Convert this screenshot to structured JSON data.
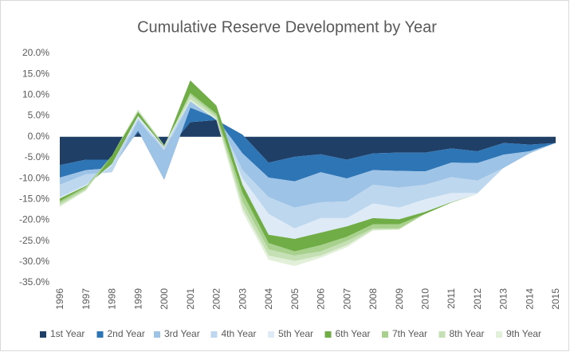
{
  "chart_data": {
    "type": "stacked_area",
    "title": "Cumulative Reserve Development by Year",
    "categories": [
      "1996",
      "1997",
      "1998",
      "1999",
      "2000",
      "2001",
      "2002",
      "2003",
      "2004",
      "2005",
      "2006",
      "2007",
      "2008",
      "2009",
      "2010",
      "2011",
      "2012",
      "2013",
      "2014",
      "2015"
    ],
    "ylim": [
      -35,
      20
    ],
    "yticks": [
      {
        "value": 20,
        "label": "20.0%"
      },
      {
        "value": 15,
        "label": "15.0%"
      },
      {
        "value": 10,
        "label": "10.0%"
      },
      {
        "value": 5,
        "label": "5.0%"
      },
      {
        "value": 0,
        "label": "0.0%"
      },
      {
        "value": -5,
        "label": "-5.0%"
      },
      {
        "value": -10,
        "label": "-10.0%"
      },
      {
        "value": -15,
        "label": "-15.0%"
      },
      {
        "value": -20,
        "label": "-20.0%"
      },
      {
        "value": -25,
        "label": "-25.0%"
      },
      {
        "value": -30,
        "label": "-30.0%"
      },
      {
        "value": -35,
        "label": "-35.0%"
      }
    ],
    "grid": false,
    "legend": "bottom",
    "series": [
      {
        "name": "1st Year",
        "color": "#1f3f66",
        "values": [
          -6.8,
          -5.5,
          -5.5,
          1,
          -4,
          3.5,
          4,
          0.5,
          -6.2,
          -4.8,
          -4.2,
          -5.5,
          -4,
          -3.8,
          -3.8,
          -2.8,
          -3.5,
          -1.5,
          -1.9,
          -1.5
        ]
      },
      {
        "name": "2nd Year",
        "color": "#2e75b6",
        "values": [
          -3,
          -2.5,
          -2,
          0.5,
          -6.3,
          3.5,
          0.5,
          -4.5,
          -3.6,
          -5.9,
          -4.3,
          -4.5,
          -4,
          -4.4,
          -4.5,
          -3.4,
          -2.8,
          -2.8,
          -1.6,
          0
        ]
      },
      {
        "name": "3rd Year",
        "color": "#9dc3e6",
        "values": [
          -1.7,
          -1,
          -1,
          2.5,
          6.8,
          1.5,
          0.5,
          -4,
          -4.7,
          -6.3,
          -7.2,
          -5.5,
          -3.5,
          -4,
          -3.2,
          -3.5,
          -4.2,
          -3.2,
          -0.5,
          0
        ]
      },
      {
        "name": "4th Year",
        "color": "#bdd7ee",
        "values": [
          -3,
          -2.5,
          1.5,
          0.5,
          0.5,
          1.5,
          0.5,
          -2,
          -4,
          -5,
          -3.8,
          -4,
          -4.5,
          -4.8,
          -3.5,
          -3.8,
          -3,
          0,
          0,
          0
        ]
      },
      {
        "name": "5th Year",
        "color": "#deebf7",
        "values": [
          -0.3,
          -0.3,
          0.5,
          0.5,
          0.5,
          3.5,
          2,
          -1.5,
          -5,
          -2.5,
          -3.5,
          -2,
          -3.5,
          -2.8,
          -3,
          -2.2,
          -0.2,
          0,
          0,
          0
        ]
      },
      {
        "name": "6th Year",
        "color": "#70ad47",
        "values": [
          -0.7,
          -0.2,
          2,
          1,
          0,
          -3,
          -2,
          -2,
          -2,
          -3,
          -3,
          -2.5,
          -1.5,
          -1.2,
          -0.5,
          -0.1,
          0,
          0,
          0,
          0
        ]
      },
      {
        "name": "7th Year",
        "color": "#a9d18e",
        "values": [
          -0.5,
          -0.5,
          0,
          0.5,
          0.5,
          -0.5,
          -0.5,
          -2,
          -1.5,
          -1,
          -1.5,
          -1,
          -1,
          -1,
          0,
          0,
          0,
          0,
          0,
          0
        ]
      },
      {
        "name": "8th Year",
        "color": "#c5e0b4",
        "values": [
          -0.5,
          -0.3,
          0,
          -0.2,
          0,
          -1,
          -0.5,
          -1.5,
          -1.5,
          -1.3,
          -1,
          -1,
          -0.3,
          -0.2,
          0,
          0,
          0,
          0,
          0,
          0
        ]
      },
      {
        "name": "9th Year",
        "color": "#e2f0d9",
        "values": [
          -0.3,
          -0.2,
          0,
          -0.3,
          0,
          -0.5,
          -0.5,
          -1,
          -1,
          -1.2,
          -0.5,
          -0.5,
          -0.2,
          -0.1,
          0,
          0,
          0,
          0,
          0,
          0
        ]
      }
    ]
  }
}
